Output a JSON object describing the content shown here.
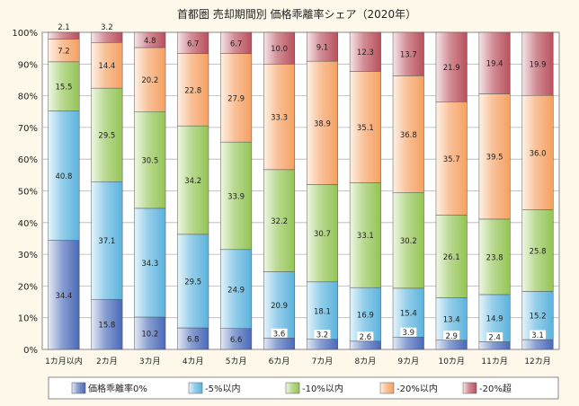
{
  "chart_data": {
    "type": "bar",
    "stacked": true,
    "title": "首都圏 売却期間別 価格乖離率シェア（2020年）",
    "categories": [
      "1カ月以内",
      "2カ月",
      "3カ月",
      "4カ月",
      "5カ月",
      "6カ月",
      "7カ月",
      "8カ月",
      "9カ月",
      "10カ月",
      "11カ月",
      "12カ月"
    ],
    "ylim": [
      0,
      100
    ],
    "yticks": [
      "0%",
      "10%",
      "20%",
      "30%",
      "40%",
      "50%",
      "60%",
      "70%",
      "80%",
      "90%",
      "100%"
    ],
    "grid": true,
    "legend_position": "bottom",
    "series": [
      {
        "name": "価格乖離率0%",
        "color": "#4a69b8",
        "values": [
          34.4,
          15.8,
          10.2,
          6.8,
          6.6,
          3.6,
          3.2,
          2.6,
          3.9,
          2.9,
          2.4,
          3.1
        ]
      },
      {
        "name": "-5%以内",
        "color": "#5bb3dd",
        "values": [
          40.8,
          37.1,
          34.3,
          29.5,
          24.9,
          20.9,
          18.1,
          16.9,
          15.4,
          13.4,
          14.9,
          15.2
        ]
      },
      {
        "name": "-10%以内",
        "color": "#94c454",
        "values": [
          15.5,
          29.5,
          30.5,
          34.2,
          33.9,
          32.2,
          30.7,
          33.1,
          30.2,
          26.1,
          23.8,
          25.8
        ]
      },
      {
        "name": "-20%以内",
        "color": "#f5a060",
        "values": [
          7.2,
          14.4,
          20.2,
          22.8,
          27.9,
          33.3,
          38.9,
          35.1,
          36.8,
          35.7,
          39.5,
          36.0
        ]
      },
      {
        "name": "-20%超",
        "color": "#b9505e",
        "values": [
          2.1,
          3.2,
          4.8,
          6.7,
          6.7,
          10.0,
          9.1,
          12.3,
          13.7,
          21.9,
          19.4,
          19.9
        ]
      }
    ]
  }
}
